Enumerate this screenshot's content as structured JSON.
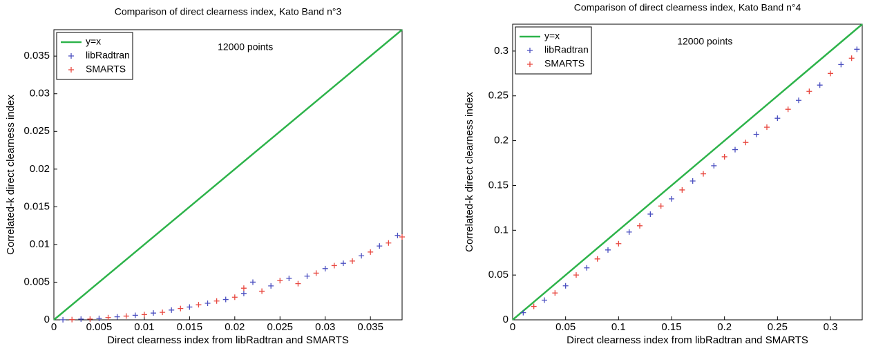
{
  "chart_data": [
    {
      "type": "scatter",
      "title": "Comparison of direct clearness index, Kato Band n°3",
      "xlabel": "Direct clearness index from libRadtran and SMARTS",
      "ylabel": "Correlated-k direct clearness index",
      "annotation": "12000 points",
      "xlim": [
        0,
        0.0385
      ],
      "ylim": [
        0,
        0.0385
      ],
      "xticks": [
        0,
        0.005,
        0.01,
        0.015,
        0.02,
        0.025,
        0.03,
        0.035
      ],
      "yticks": [
        0,
        0.005,
        0.01,
        0.015,
        0.02,
        0.025,
        0.03,
        0.035
      ],
      "legend": "upper left",
      "series": [
        {
          "name": "y=x",
          "kind": "line",
          "color": "#2db34a",
          "x": [
            0,
            0.0385
          ],
          "values": [
            0,
            0.0385
          ]
        },
        {
          "name": "libRadtran",
          "kind": "marker",
          "color": "#4a4fc0",
          "x": [
            0.001,
            0.003,
            0.005,
            0.007,
            0.009,
            0.011,
            0.013,
            0.015,
            0.017,
            0.019,
            0.021,
            0.022,
            0.024,
            0.026,
            0.028,
            0.03,
            0.032,
            0.034,
            0.036,
            0.038
          ],
          "values": [
            1e-05,
            0.0001,
            0.0002,
            0.0004,
            0.0006,
            0.0009,
            0.0013,
            0.0017,
            0.0022,
            0.0027,
            0.0035,
            0.005,
            0.0045,
            0.0055,
            0.0058,
            0.0068,
            0.0075,
            0.0085,
            0.0098,
            0.0112
          ]
        },
        {
          "name": "SMARTS",
          "kind": "marker",
          "color": "#e8473f",
          "x": [
            0.002,
            0.004,
            0.006,
            0.008,
            0.01,
            0.012,
            0.014,
            0.016,
            0.018,
            0.02,
            0.021,
            0.023,
            0.025,
            0.027,
            0.029,
            0.031,
            0.033,
            0.035,
            0.037,
            0.0385
          ],
          "values": [
            3e-05,
            0.0001,
            0.0003,
            0.0005,
            0.0007,
            0.001,
            0.0015,
            0.002,
            0.0025,
            0.003,
            0.0042,
            0.0038,
            0.0052,
            0.0048,
            0.0062,
            0.0072,
            0.0078,
            0.009,
            0.0102,
            0.011
          ]
        }
      ]
    },
    {
      "type": "scatter",
      "title": "Comparison of direct clearness index, Kato Band n°4",
      "xlabel": "Direct clearness index from libRadtran and SMARTS",
      "ylabel": "Correlated-k direct clearness index",
      "annotation": "12000 points",
      "xlim": [
        0,
        0.33
      ],
      "ylim": [
        0,
        0.33
      ],
      "xticks": [
        0,
        0.05,
        0.1,
        0.15,
        0.2,
        0.25,
        0.3
      ],
      "yticks": [
        0,
        0.05,
        0.1,
        0.15,
        0.2,
        0.25,
        0.3
      ],
      "legend": "upper left",
      "series": [
        {
          "name": "y=x",
          "kind": "line",
          "color": "#2db34a",
          "x": [
            0,
            0.33
          ],
          "values": [
            0,
            0.33
          ]
        },
        {
          "name": "libRadtran",
          "kind": "marker",
          "color": "#4a4fc0",
          "x": [
            0.01,
            0.03,
            0.05,
            0.07,
            0.09,
            0.11,
            0.13,
            0.15,
            0.17,
            0.19,
            0.21,
            0.23,
            0.25,
            0.27,
            0.29,
            0.31,
            0.325
          ],
          "values": [
            0.008,
            0.022,
            0.038,
            0.058,
            0.078,
            0.098,
            0.118,
            0.135,
            0.155,
            0.172,
            0.19,
            0.207,
            0.225,
            0.245,
            0.262,
            0.285,
            0.302
          ]
        },
        {
          "name": "SMARTS",
          "kind": "marker",
          "color": "#e8473f",
          "x": [
            0.02,
            0.04,
            0.06,
            0.08,
            0.1,
            0.12,
            0.14,
            0.16,
            0.18,
            0.2,
            0.22,
            0.24,
            0.26,
            0.28,
            0.3,
            0.32
          ],
          "values": [
            0.015,
            0.03,
            0.05,
            0.068,
            0.085,
            0.105,
            0.127,
            0.145,
            0.163,
            0.182,
            0.198,
            0.215,
            0.235,
            0.255,
            0.275,
            0.292
          ]
        }
      ]
    }
  ]
}
